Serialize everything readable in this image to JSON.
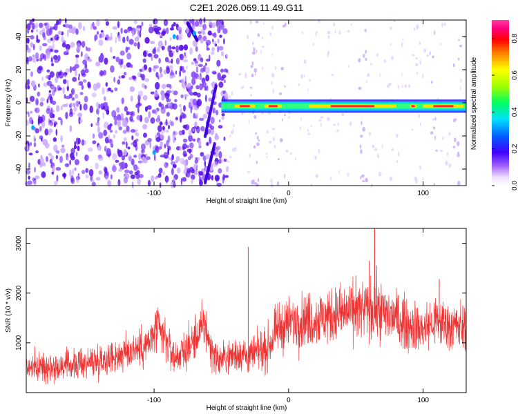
{
  "title": "C2E1.2026.069.11.49.G11",
  "colors": {
    "snr": "#ee3333",
    "axis": "#000000",
    "spectrogram_dots": "#6a1bff"
  },
  "chart_data": [
    {
      "type": "heatmap",
      "xlabel": "Height of straight line (km)",
      "ylabel": "Frequency (Hz)",
      "xlim": [
        -195,
        132
      ],
      "ylim": [
        -50,
        50
      ],
      "xticks": [
        -100,
        0,
        100
      ],
      "yticks": [
        -40,
        -20,
        0,
        20,
        40
      ],
      "colorbar": {
        "label": "Normalized spectral amplitude",
        "range": [
          0,
          0.9
        ],
        "ticks": [
          0.0,
          0.2,
          0.4,
          0.6,
          0.8
        ],
        "tick_labels": [
          "0.0",
          "0.2",
          "0.4",
          "0.6",
          "0.8"
        ]
      },
      "signal_band": {
        "description": "strong carrier line near 0 Hz",
        "x_start": -50,
        "x_end": 132,
        "freq_center": -2,
        "peak_segments": [
          [
            -40,
            -25
          ],
          [
            -18,
            -5
          ],
          [
            15,
            80
          ],
          [
            90,
            95
          ],
          [
            100,
            130
          ]
        ]
      },
      "noise_region": {
        "x_start": -195,
        "x_end": -45
      },
      "streaks": [
        {
          "x0": -62,
          "y0": -48,
          "x1": -55,
          "y1": -25
        },
        {
          "x0": -62,
          "y0": -20,
          "x1": -54,
          "y1": 10
        },
        {
          "x0": -75,
          "y0": 48,
          "x1": -68,
          "y1": 38
        }
      ]
    },
    {
      "type": "line",
      "xlabel": "Height of straight line (km)",
      "ylabel": "SNR (10 * v/v)",
      "xlim": [
        -195,
        132
      ],
      "ylim": [
        0,
        3300
      ],
      "xticks": [
        -100,
        0,
        100
      ],
      "yticks": [
        1000,
        2000,
        3000
      ],
      "series": [
        {
          "name": "SNR",
          "envelope_x": [
            -195,
            -170,
            -150,
            -125,
            -115,
            -105,
            -98,
            -92,
            -85,
            -75,
            -68,
            -62,
            -58,
            -52,
            -45,
            -36,
            -33,
            -30,
            -25,
            -15,
            -8,
            0,
            10,
            25,
            40,
            55,
            64,
            70,
            80,
            90,
            100,
            110,
            120,
            132
          ],
          "envelope_mean": [
            500,
            520,
            600,
            750,
            880,
            950,
            1250,
            1100,
            700,
            880,
            1150,
            1350,
            900,
            640,
            720,
            800,
            780,
            700,
            780,
            900,
            1300,
            1400,
            1450,
            1500,
            1600,
            1650,
            1680,
            1600,
            1500,
            1350,
            1280,
            1450,
            1350,
            1300
          ],
          "envelope_spread": [
            330,
            340,
            380,
            440,
            480,
            520,
            580,
            560,
            420,
            480,
            560,
            600,
            480,
            380,
            420,
            460,
            450,
            420,
            450,
            520,
            600,
            640,
            650,
            680,
            700,
            720,
            740,
            720,
            680,
            620,
            600,
            650,
            620,
            600
          ],
          "spikes": [
            {
              "x": -30,
              "y": 2930
            },
            {
              "x": 64,
              "y": 3300
            },
            {
              "x": 60,
              "y": 2650
            },
            {
              "x": 50,
              "y": 2350
            },
            {
              "x": -98,
              "y": 1650
            },
            {
              "x": 112,
              "y": 2280
            }
          ]
        }
      ]
    }
  ]
}
